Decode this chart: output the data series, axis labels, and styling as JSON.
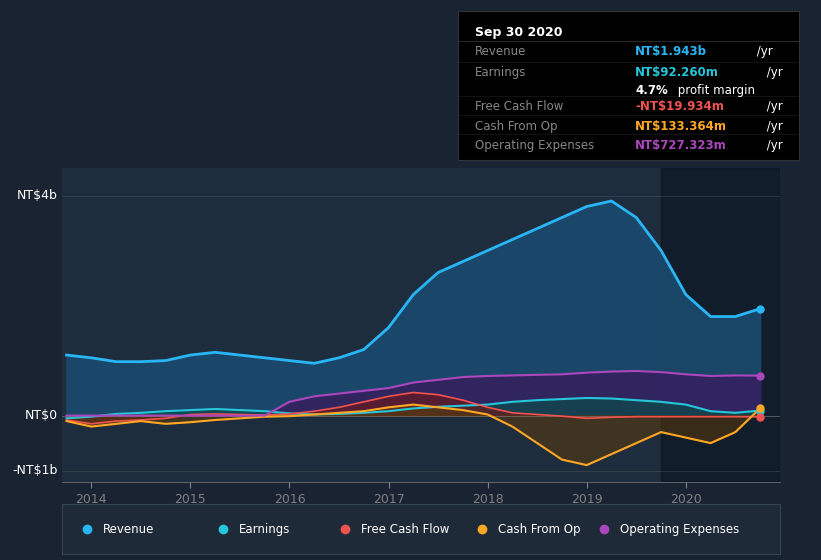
{
  "bg_color": "#1a2332",
  "plot_bg_color": "#1e2d3d",
  "revenue_color": "#29b6f6",
  "earnings_color": "#26c6da",
  "fcf_color": "#ef5350",
  "cfo_color": "#ffa726",
  "opex_color": "#ab47bc",
  "revenue_fill_color": "#1a4a6e",
  "earnings_fill_color": "#0d4a4a",
  "fcf_fill_color": "#6b1a1a",
  "cfo_fill_color": "#5a3a0a",
  "opex_fill_color": "#3a1a5e",
  "legend_bg": "#1e2a38",
  "xlim": [
    2013.7,
    2020.95
  ],
  "ylim": [
    -1200,
    4500
  ],
  "x": [
    2013.75,
    2014.0,
    2014.25,
    2014.5,
    2014.75,
    2015.0,
    2015.25,
    2015.5,
    2015.75,
    2016.0,
    2016.25,
    2016.5,
    2016.75,
    2017.0,
    2017.25,
    2017.5,
    2017.75,
    2018.0,
    2018.25,
    2018.5,
    2018.75,
    2019.0,
    2019.25,
    2019.5,
    2019.75,
    2020.0,
    2020.25,
    2020.5,
    2020.75
  ],
  "revenue": [
    1100,
    1050,
    980,
    980,
    1000,
    1100,
    1150,
    1100,
    1050,
    1000,
    950,
    1050,
    1200,
    1600,
    2200,
    2600,
    2800,
    3000,
    3200,
    3400,
    3600,
    3800,
    3900,
    3600,
    3000,
    2200,
    1800,
    1800,
    1943
  ],
  "earnings": [
    -50,
    -20,
    30,
    50,
    80,
    100,
    120,
    100,
    80,
    40,
    20,
    30,
    50,
    80,
    130,
    160,
    180,
    200,
    250,
    280,
    300,
    320,
    310,
    280,
    250,
    200,
    80,
    50,
    92
  ],
  "fcf": [
    -80,
    -150,
    -100,
    -80,
    -50,
    20,
    30,
    20,
    10,
    30,
    80,
    150,
    250,
    350,
    420,
    380,
    280,
    150,
    50,
    20,
    -10,
    -50,
    -30,
    -20,
    -20,
    -20,
    -20,
    -20,
    -20
  ],
  "cfo": [
    -100,
    -200,
    -150,
    -100,
    -150,
    -120,
    -80,
    -50,
    -20,
    -10,
    20,
    50,
    80,
    150,
    200,
    150,
    100,
    20,
    -200,
    -500,
    -800,
    -900,
    -700,
    -500,
    -300,
    -400,
    -500,
    -300,
    133
  ],
  "opex": [
    0,
    0,
    0,
    0,
    0,
    0,
    0,
    0,
    0,
    250,
    350,
    400,
    450,
    500,
    600,
    650,
    700,
    720,
    730,
    740,
    750,
    780,
    800,
    810,
    790,
    750,
    720,
    730,
    727
  ],
  "info_title": "Sep 30 2020",
  "info_rows": [
    {
      "label": "Revenue",
      "value": "NT$1.943b",
      "value_color": "#29b6f6",
      "suffix": " /yr",
      "sub_label": "",
      "sub_value": ""
    },
    {
      "label": "Earnings",
      "value": "NT$92.260m",
      "value_color": "#26c6da",
      "suffix": " /yr",
      "sub_label": "",
      "sub_value": "4.7% profit margin"
    },
    {
      "label": "Free Cash Flow",
      "value": "-NT$19.934m",
      "value_color": "#ef5350",
      "suffix": " /yr",
      "sub_label": "",
      "sub_value": ""
    },
    {
      "label": "Cash From Op",
      "value": "NT$133.364m",
      "value_color": "#ffa726",
      "suffix": " /yr",
      "sub_label": "",
      "sub_value": ""
    },
    {
      "label": "Operating Expenses",
      "value": "NT$727.323m",
      "value_color": "#ab47bc",
      "suffix": " /yr",
      "sub_label": "",
      "sub_value": ""
    }
  ],
  "legend_items": [
    {
      "color": "#29b6f6",
      "label": "Revenue"
    },
    {
      "color": "#26c6da",
      "label": "Earnings"
    },
    {
      "color": "#ef5350",
      "label": "Free Cash Flow"
    },
    {
      "color": "#ffa726",
      "label": "Cash From Op"
    },
    {
      "color": "#ab47bc",
      "label": "Operating Expenses"
    }
  ]
}
